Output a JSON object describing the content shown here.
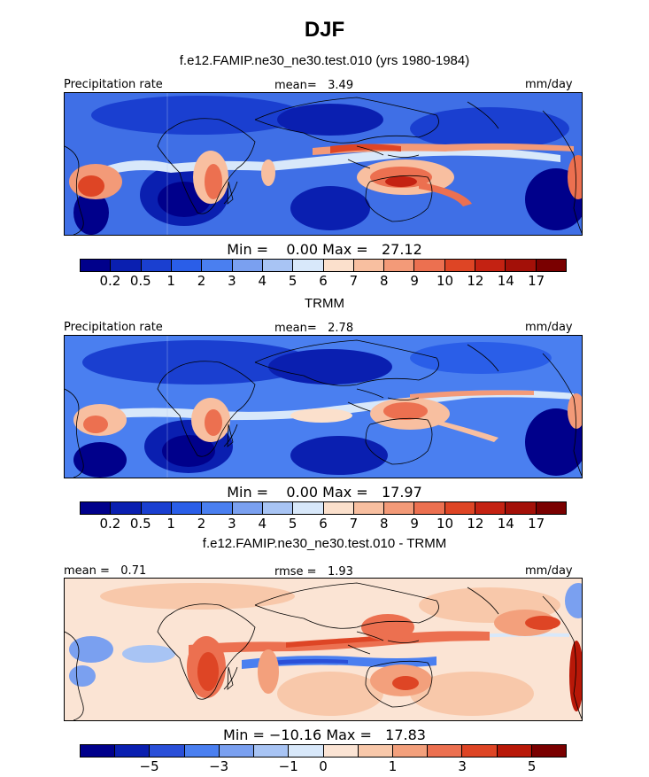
{
  "title": "DJF",
  "panels": [
    {
      "title": "f.e12.FAMIP.ne30_ne30.test.010 (yrs 1980-1984)",
      "left_label": "Precipitation rate",
      "center_label": "mean=   3.49",
      "right_label": "mm/day",
      "minmax": "Min =    0.00 Max =   27.12",
      "colorbar_ticks": [
        "0.2",
        "0.5",
        "1",
        "2",
        "3",
        "4",
        "5",
        "6",
        "7",
        "8",
        "9",
        "10",
        "12",
        "14",
        "17"
      ]
    },
    {
      "title": "TRMM",
      "left_label": "Precipitation rate",
      "center_label": "mean=   2.78",
      "right_label": "mm/day",
      "minmax": "Min =    0.00 Max =   17.97",
      "colorbar_ticks": [
        "0.2",
        "0.5",
        "1",
        "2",
        "3",
        "4",
        "5",
        "6",
        "7",
        "8",
        "9",
        "10",
        "12",
        "14",
        "17"
      ]
    },
    {
      "title": "f.e12.FAMIP.ne30_ne30.test.010 - TRMM",
      "left_label": "mean =   0.71",
      "center_label": "rmse =   1.93",
      "right_label": "mm/day",
      "minmax": "Min = −10.16 Max =   17.83",
      "colorbar_ticks": [
        "−5",
        "−3",
        "−1",
        "0",
        "1",
        "3",
        "5"
      ]
    }
  ],
  "colors": {
    "precip_scale": [
      "#00008b",
      "#0a1fb0",
      "#1a3fd0",
      "#2a5ee8",
      "#4a7ff0",
      "#7aa0f0",
      "#a8c4f4",
      "#d8e8fa",
      "#fbe0cc",
      "#f8bfa0",
      "#f39a78",
      "#ec7050",
      "#de4525",
      "#c42212",
      "#a31008",
      "#7a0000"
    ],
    "diff_scale": [
      "#00008b",
      "#0a1fb0",
      "#2a4fd8",
      "#4a7ff0",
      "#7aa0f0",
      "#a8c4f4",
      "#d8e8fa",
      "#fbe4d4",
      "#f8c8aa",
      "#f3a07c",
      "#ec7050",
      "#de4525",
      "#b81808",
      "#7a0000"
    ]
  }
}
